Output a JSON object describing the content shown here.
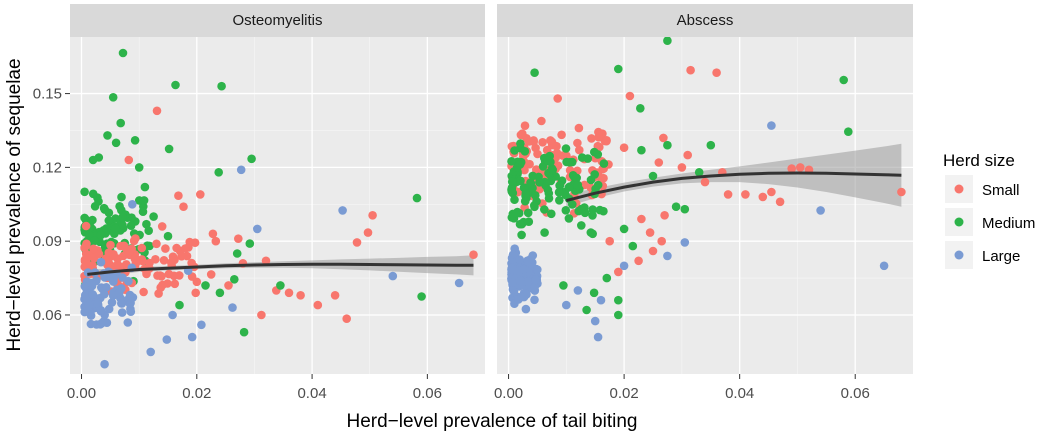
{
  "chart_data": {
    "type": "scatter",
    "xlabel": "Herd−level prevalence of tail biting",
    "ylabel": "Herd−level prevalence of sequelae",
    "xlim": [
      -0.002,
      0.07
    ],
    "ylim": [
      0.036,
      0.173
    ],
    "x_ticks": [
      0.0,
      0.02,
      0.04,
      0.06
    ],
    "x_tick_labels": [
      "0.00",
      "0.02",
      "0.04",
      "0.06"
    ],
    "y_ticks": [
      0.06,
      0.09,
      0.12,
      0.15
    ],
    "y_tick_labels": [
      "0.06",
      "0.09",
      "0.12",
      "0.15"
    ],
    "legend": {
      "title": "Herd size",
      "placement": "right",
      "entries": [
        {
          "label": "Small",
          "color": "#F8766D"
        },
        {
          "label": "Medium",
          "color": "#2DB34A"
        },
        {
          "label": "Large",
          "color": "#7A9BD3"
        }
      ]
    },
    "smoother_color": "#333333",
    "ribbon_color": "#9a9a9a",
    "panels": [
      {
        "title": "Osteomyelitis",
        "smooth": {
          "x": [
            0.001,
            0.005,
            0.01,
            0.015,
            0.02,
            0.025,
            0.03,
            0.035,
            0.04,
            0.045,
            0.05,
            0.055,
            0.06,
            0.065,
            0.068
          ],
          "y": [
            0.0765,
            0.0775,
            0.0785,
            0.079,
            0.0795,
            0.08,
            0.0803,
            0.0805,
            0.0806,
            0.0806,
            0.0805,
            0.0804,
            0.0803,
            0.0802,
            0.0802
          ],
          "lower": [
            0.0745,
            0.0762,
            0.0775,
            0.0781,
            0.0786,
            0.079,
            0.0792,
            0.0792,
            0.079,
            0.0786,
            0.0781,
            0.0776,
            0.077,
            0.0765,
            0.0761
          ],
          "upper": [
            0.0785,
            0.0788,
            0.0795,
            0.0799,
            0.0804,
            0.081,
            0.0814,
            0.0818,
            0.0822,
            0.0826,
            0.0829,
            0.0832,
            0.0836,
            0.0839,
            0.0843
          ]
        },
        "points": [
          {
            "x": 0.0072,
            "y": 0.1665,
            "g": "Medium"
          },
          {
            "x": 0.0163,
            "y": 0.1535,
            "g": "Medium"
          },
          {
            "x": 0.0243,
            "y": 0.153,
            "g": "Medium"
          },
          {
            "x": 0.0055,
            "y": 0.1485,
            "g": "Medium"
          },
          {
            "x": 0.0131,
            "y": 0.143,
            "g": "Small"
          },
          {
            "x": 0.0093,
            "y": 0.131,
            "g": "Medium"
          },
          {
            "x": 0.0152,
            "y": 0.1275,
            "g": "Medium"
          },
          {
            "x": 0.0295,
            "y": 0.1235,
            "g": "Medium"
          },
          {
            "x": 0.0277,
            "y": 0.119,
            "g": "Large"
          },
          {
            "x": 0.0238,
            "y": 0.118,
            "g": "Medium"
          },
          {
            "x": 0.0168,
            "y": 0.1085,
            "g": "Small"
          },
          {
            "x": 0.0206,
            "y": 0.109,
            "g": "Small"
          },
          {
            "x": 0.0177,
            "y": 0.104,
            "g": "Small"
          },
          {
            "x": 0.0453,
            "y": 0.1025,
            "g": "Large"
          },
          {
            "x": 0.0505,
            "y": 0.1005,
            "g": "Small"
          },
          {
            "x": 0.0582,
            "y": 0.1075,
            "g": "Medium"
          },
          {
            "x": 0.0292,
            "y": 0.089,
            "g": "Medium"
          },
          {
            "x": 0.0305,
            "y": 0.095,
            "g": "Large"
          },
          {
            "x": 0.0497,
            "y": 0.0935,
            "g": "Small"
          },
          {
            "x": 0.0233,
            "y": 0.09,
            "g": "Small"
          },
          {
            "x": 0.0228,
            "y": 0.093,
            "g": "Small"
          },
          {
            "x": 0.0272,
            "y": 0.091,
            "g": "Small"
          },
          {
            "x": 0.0478,
            "y": 0.0895,
            "g": "Small"
          },
          {
            "x": 0.032,
            "y": 0.082,
            "g": "Small"
          },
          {
            "x": 0.028,
            "y": 0.081,
            "g": "Small"
          },
          {
            "x": 0.068,
            "y": 0.0845,
            "g": "Small"
          },
          {
            "x": 0.054,
            "y": 0.0758,
            "g": "Large"
          },
          {
            "x": 0.0655,
            "y": 0.073,
            "g": "Large"
          },
          {
            "x": 0.059,
            "y": 0.0675,
            "g": "Medium"
          },
          {
            "x": 0.044,
            "y": 0.068,
            "g": "Small"
          },
          {
            "x": 0.038,
            "y": 0.068,
            "g": "Small"
          },
          {
            "x": 0.0338,
            "y": 0.07,
            "g": "Small"
          },
          {
            "x": 0.036,
            "y": 0.069,
            "g": "Small"
          },
          {
            "x": 0.041,
            "y": 0.064,
            "g": "Small"
          },
          {
            "x": 0.046,
            "y": 0.0585,
            "g": "Small"
          },
          {
            "x": 0.0312,
            "y": 0.06,
            "g": "Small"
          },
          {
            "x": 0.0262,
            "y": 0.063,
            "g": "Large"
          },
          {
            "x": 0.0282,
            "y": 0.053,
            "g": "Medium"
          },
          {
            "x": 0.0208,
            "y": 0.056,
            "g": "Large"
          },
          {
            "x": 0.0192,
            "y": 0.051,
            "g": "Large"
          },
          {
            "x": 0.0148,
            "y": 0.05,
            "g": "Large"
          },
          {
            "x": 0.012,
            "y": 0.045,
            "g": "Large"
          },
          {
            "x": 0.004,
            "y": 0.04,
            "g": "Large"
          },
          {
            "x": 0.0345,
            "y": 0.072,
            "g": "Medium"
          },
          {
            "x": 0.0265,
            "y": 0.0745,
            "g": "Medium"
          },
          {
            "x": 0.0225,
            "y": 0.0765,
            "g": "Small"
          },
          {
            "x": 0.0185,
            "y": 0.078,
            "g": "Large"
          },
          {
            "x": 0.0215,
            "y": 0.072,
            "g": "Medium"
          },
          {
            "x": 0.0198,
            "y": 0.069,
            "g": "Small"
          },
          {
            "x": 0.024,
            "y": 0.069,
            "g": "Medium"
          },
          {
            "x": 0.0255,
            "y": 0.072,
            "g": "Small"
          },
          {
            "x": 0.017,
            "y": 0.064,
            "g": "Medium"
          },
          {
            "x": 0.0158,
            "y": 0.06,
            "g": "Large"
          },
          {
            "x": 0.027,
            "y": 0.085,
            "g": "Medium"
          },
          {
            "x": 0.018,
            "y": 0.087,
            "g": "Small"
          },
          {
            "x": 0.015,
            "y": 0.092,
            "g": "Medium"
          },
          {
            "x": 0.014,
            "y": 0.096,
            "g": "Small"
          },
          {
            "x": 0.0125,
            "y": 0.1,
            "g": "Medium"
          },
          {
            "x": 0.011,
            "y": 0.112,
            "g": "Medium"
          },
          {
            "x": 0.01,
            "y": 0.12,
            "g": "Medium"
          },
          {
            "x": 0.0082,
            "y": 0.123,
            "g": "Small"
          },
          {
            "x": 0.0068,
            "y": 0.138,
            "g": "Medium"
          },
          {
            "x": 0.006,
            "y": 0.13,
            "g": "Medium"
          },
          {
            "x": 0.0045,
            "y": 0.133,
            "g": "Medium"
          },
          {
            "x": 0.003,
            "y": 0.124,
            "g": "Medium"
          },
          {
            "x": 0.002,
            "y": 0.123,
            "g": "Medium"
          },
          {
            "x": 0.0088,
            "y": 0.105,
            "g": "Large"
          }
        ],
        "cloud_seed": 11,
        "cloud": [
          {
            "g": "Medium",
            "n": 95,
            "x": [
              0.0005,
              0.012
            ],
            "y": [
              0.07,
              0.116
            ]
          },
          {
            "g": "Small",
            "n": 105,
            "x": [
              0.0005,
              0.02
            ],
            "y": [
              0.062,
              0.097
            ]
          },
          {
            "g": "Large",
            "n": 85,
            "x": [
              0.0005,
              0.009
            ],
            "y": [
              0.052,
              0.084
            ]
          }
        ]
      },
      {
        "title": "Abscess",
        "smooth": {
          "x": [
            0.01,
            0.015,
            0.02,
            0.025,
            0.03,
            0.035,
            0.04,
            0.045,
            0.05,
            0.055,
            0.06,
            0.065,
            0.068
          ],
          "y": [
            0.1065,
            0.1095,
            0.112,
            0.114,
            0.1155,
            0.1165,
            0.1172,
            0.1176,
            0.1177,
            0.1176,
            0.1173,
            0.117,
            0.1168
          ],
          "lower": [
            0.104,
            0.1075,
            0.1102,
            0.1122,
            0.1135,
            0.114,
            0.114,
            0.1132,
            0.1118,
            0.11,
            0.1078,
            0.1055,
            0.104
          ],
          "upper": [
            0.109,
            0.1115,
            0.1138,
            0.1158,
            0.1175,
            0.119,
            0.1204,
            0.122,
            0.1236,
            0.1252,
            0.1268,
            0.1285,
            0.1296
          ]
        },
        "points": [
          {
            "x": 0.0275,
            "y": 0.1715,
            "g": "Medium"
          },
          {
            "x": 0.0315,
            "y": 0.1595,
            "g": "Small"
          },
          {
            "x": 0.036,
            "y": 0.1585,
            "g": "Small"
          },
          {
            "x": 0.0045,
            "y": 0.1585,
            "g": "Medium"
          },
          {
            "x": 0.019,
            "y": 0.16,
            "g": "Medium"
          },
          {
            "x": 0.058,
            "y": 0.1555,
            "g": "Medium"
          },
          {
            "x": 0.021,
            "y": 0.149,
            "g": "Small"
          },
          {
            "x": 0.0228,
            "y": 0.144,
            "g": "Medium"
          },
          {
            "x": 0.0085,
            "y": 0.148,
            "g": "Small"
          },
          {
            "x": 0.0455,
            "y": 0.137,
            "g": "Large"
          },
          {
            "x": 0.0588,
            "y": 0.1345,
            "g": "Medium"
          },
          {
            "x": 0.0268,
            "y": 0.132,
            "g": "Small"
          },
          {
            "x": 0.0275,
            "y": 0.129,
            "g": "Medium"
          },
          {
            "x": 0.035,
            "y": 0.129,
            "g": "Medium"
          },
          {
            "x": 0.031,
            "y": 0.125,
            "g": "Small"
          },
          {
            "x": 0.02,
            "y": 0.128,
            "g": "Small"
          },
          {
            "x": 0.023,
            "y": 0.127,
            "g": "Medium"
          },
          {
            "x": 0.026,
            "y": 0.122,
            "g": "Small"
          },
          {
            "x": 0.03,
            "y": 0.12,
            "g": "Small"
          },
          {
            "x": 0.033,
            "y": 0.118,
            "g": "Medium"
          },
          {
            "x": 0.037,
            "y": 0.118,
            "g": "Small"
          },
          {
            "x": 0.049,
            "y": 0.1195,
            "g": "Small"
          },
          {
            "x": 0.0505,
            "y": 0.12,
            "g": "Small"
          },
          {
            "x": 0.052,
            "y": 0.119,
            "g": "Small"
          },
          {
            "x": 0.025,
            "y": 0.1165,
            "g": "Medium"
          },
          {
            "x": 0.034,
            "y": 0.114,
            "g": "Small"
          },
          {
            "x": 0.038,
            "y": 0.109,
            "g": "Small"
          },
          {
            "x": 0.041,
            "y": 0.109,
            "g": "Small"
          },
          {
            "x": 0.044,
            "y": 0.108,
            "g": "Small"
          },
          {
            "x": 0.0455,
            "y": 0.11,
            "g": "Small"
          },
          {
            "x": 0.047,
            "y": 0.106,
            "g": "Small"
          },
          {
            "x": 0.068,
            "y": 0.11,
            "g": "Small"
          },
          {
            "x": 0.054,
            "y": 0.1025,
            "g": "Large"
          },
          {
            "x": 0.029,
            "y": 0.104,
            "g": "Medium"
          },
          {
            "x": 0.0305,
            "y": 0.103,
            "g": "Medium"
          },
          {
            "x": 0.027,
            "y": 0.1005,
            "g": "Small"
          },
          {
            "x": 0.023,
            "y": 0.099,
            "g": "Small"
          },
          {
            "x": 0.02,
            "y": 0.095,
            "g": "Medium"
          },
          {
            "x": 0.0245,
            "y": 0.0935,
            "g": "Small"
          },
          {
            "x": 0.0265,
            "y": 0.09,
            "g": "Small"
          },
          {
            "x": 0.0175,
            "y": 0.09,
            "g": "Small"
          },
          {
            "x": 0.0215,
            "y": 0.088,
            "g": "Medium"
          },
          {
            "x": 0.0305,
            "y": 0.0895,
            "g": "Large"
          },
          {
            "x": 0.025,
            "y": 0.086,
            "g": "Small"
          },
          {
            "x": 0.0225,
            "y": 0.082,
            "g": "Small"
          },
          {
            "x": 0.0275,
            "y": 0.084,
            "g": "Large"
          },
          {
            "x": 0.02,
            "y": 0.08,
            "g": "Large"
          },
          {
            "x": 0.019,
            "y": 0.0775,
            "g": "Small"
          },
          {
            "x": 0.065,
            "y": 0.08,
            "g": "Large"
          },
          {
            "x": 0.017,
            "y": 0.075,
            "g": "Medium"
          },
          {
            "x": 0.0148,
            "y": 0.069,
            "g": "Medium"
          },
          {
            "x": 0.019,
            "y": 0.066,
            "g": "Medium"
          },
          {
            "x": 0.016,
            "y": 0.066,
            "g": "Large"
          },
          {
            "x": 0.019,
            "y": 0.06,
            "g": "Medium"
          },
          {
            "x": 0.015,
            "y": 0.0575,
            "g": "Large"
          },
          {
            "x": 0.0155,
            "y": 0.051,
            "g": "Large"
          },
          {
            "x": 0.0095,
            "y": 0.072,
            "g": "Medium"
          },
          {
            "x": 0.012,
            "y": 0.07,
            "g": "Large"
          },
          {
            "x": 0.0135,
            "y": 0.062,
            "g": "Medium"
          },
          {
            "x": 0.01,
            "y": 0.064,
            "g": "Large"
          }
        ],
        "cloud_seed": 29,
        "cloud": [
          {
            "g": "Small",
            "n": 120,
            "x": [
              0.0005,
              0.018
            ],
            "y": [
              0.098,
              0.144
            ]
          },
          {
            "g": "Medium",
            "n": 120,
            "x": [
              0.0005,
              0.017
            ],
            "y": [
              0.088,
              0.137
            ]
          },
          {
            "g": "Large",
            "n": 120,
            "x": [
              0.0005,
              0.005
            ],
            "y": [
              0.062,
              0.09
            ]
          }
        ]
      }
    ]
  }
}
